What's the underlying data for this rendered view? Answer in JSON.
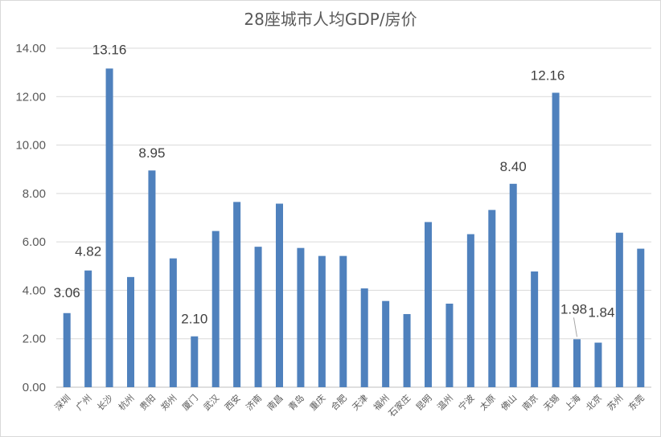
{
  "chart_data": {
    "type": "bar",
    "title": "28座城市人均GDP/房价",
    "xlabel": "",
    "ylabel": "",
    "ylim": [
      0,
      14
    ],
    "y_ticks": [
      "0.00",
      "2.00",
      "4.00",
      "6.00",
      "8.00",
      "10.00",
      "12.00",
      "14.00"
    ],
    "grid": true,
    "bar_color": "#4f81bd",
    "categories": [
      "深圳",
      "广州",
      "长沙",
      "杭州",
      "贵阳",
      "郑州",
      "厦门",
      "武汉",
      "西安",
      "济南",
      "南昌",
      "青岛",
      "重庆",
      "合肥",
      "天津",
      "福州",
      "石家庄",
      "昆明",
      "温州",
      "宁波",
      "太原",
      "佛山",
      "南京",
      "无锡",
      "上海",
      "北京",
      "苏州",
      "东莞"
    ],
    "values": [
      3.06,
      4.82,
      13.16,
      4.55,
      8.95,
      5.32,
      2.1,
      6.45,
      7.65,
      5.8,
      7.58,
      5.75,
      5.42,
      5.42,
      4.08,
      3.56,
      3.02,
      6.82,
      3.45,
      6.32,
      7.32,
      8.4,
      4.78,
      12.16,
      1.98,
      1.84,
      6.38,
      5.72
    ],
    "data_labels": [
      {
        "category": "深圳",
        "text": "3.06"
      },
      {
        "category": "广州",
        "text": "4.82"
      },
      {
        "category": "长沙",
        "text": "13.16"
      },
      {
        "category": "贵阳",
        "text": "8.95"
      },
      {
        "category": "厦门",
        "text": "2.10"
      },
      {
        "category": "佛山",
        "text": "8.40"
      },
      {
        "category": "无锡",
        "text": "12.16"
      },
      {
        "category": "上海",
        "text": "1.98"
      },
      {
        "category": "北京",
        "text": "1.84"
      }
    ]
  }
}
